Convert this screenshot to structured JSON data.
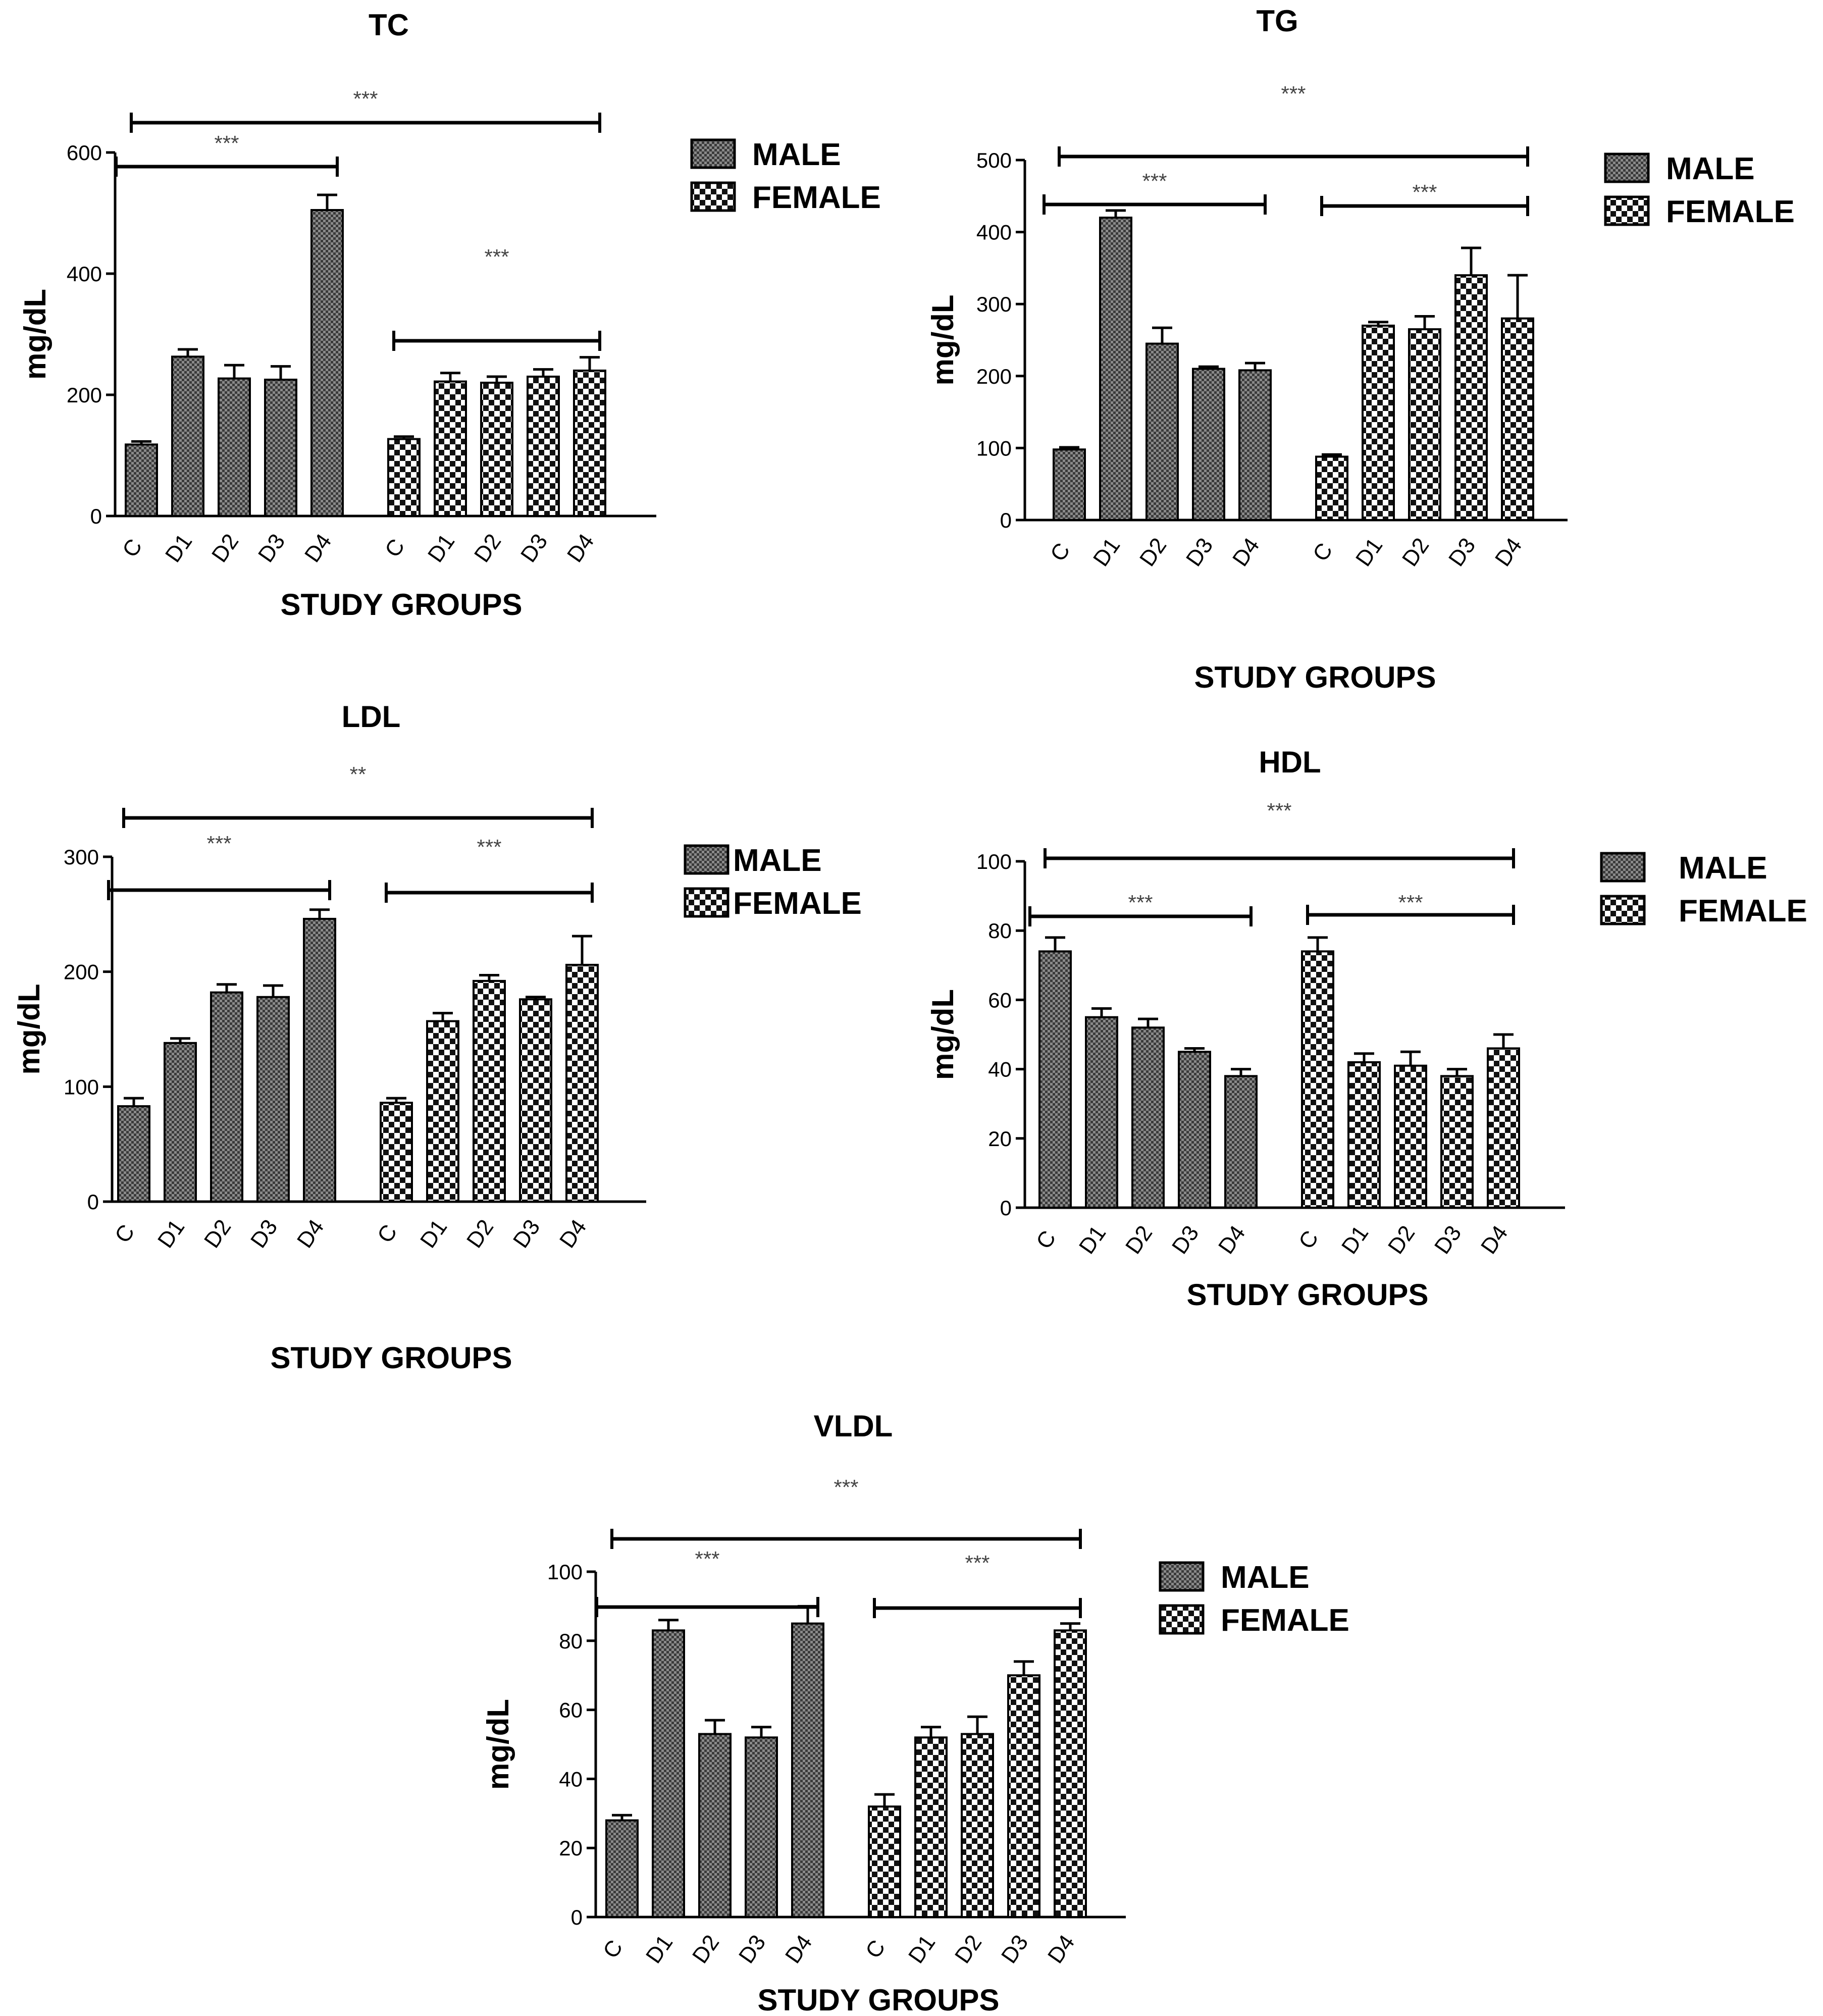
{
  "figure": {
    "description_none": null
  },
  "chart_data": [
    {
      "id": "TC",
      "type": "bar",
      "title": "TC",
      "ylabel": "mg/dL",
      "xlabel": "STUDY GROUPS",
      "ylim": [
        0,
        600
      ],
      "yticks": [
        "0",
        "200",
        "400",
        "600"
      ],
      "categories": [
        "C",
        "D1",
        "D2",
        "D3",
        "D4"
      ],
      "series": [
        {
          "name": "MALE",
          "values": [
            118,
            263,
            227,
            225,
            505
          ],
          "errors": [
            5,
            12,
            22,
            22,
            25
          ]
        },
        {
          "name": "FEMALE",
          "values": [
            127,
            222,
            220,
            230,
            240
          ],
          "errors": [
            4,
            14,
            10,
            12,
            22
          ]
        }
      ],
      "legend": [
        "MALE",
        "FEMALE"
      ],
      "brackets": [
        {
          "label": "***",
          "span": "all"
        },
        {
          "label": "***",
          "span": "MALE"
        },
        {
          "label": "***",
          "span": "FEMALE"
        }
      ]
    },
    {
      "id": "TG",
      "type": "bar",
      "title": "TG",
      "ylabel": "mg/dL",
      "xlabel": "STUDY GROUPS",
      "ylim": [
        0,
        500
      ],
      "yticks": [
        "0",
        "100",
        "200",
        "300",
        "400",
        "500"
      ],
      "categories": [
        "C",
        "D1",
        "D2",
        "D3",
        "D4"
      ],
      "series": [
        {
          "name": "MALE",
          "values": [
            98,
            420,
            245,
            210,
            208
          ],
          "errors": [
            3,
            10,
            22,
            3,
            10
          ]
        },
        {
          "name": "FEMALE",
          "values": [
            88,
            270,
            265,
            340,
            280
          ],
          "errors": [
            3,
            5,
            18,
            38,
            60
          ]
        }
      ],
      "legend": [
        "MALE",
        "FEMALE"
      ],
      "brackets": [
        {
          "label": "***",
          "span": "all"
        },
        {
          "label": "***",
          "span": "MALE"
        },
        {
          "label": "***",
          "span": "FEMALE"
        }
      ]
    },
    {
      "id": "LDL",
      "type": "bar",
      "title": "LDL",
      "ylabel": "mg/dL",
      "xlabel": "STUDY GROUPS",
      "ylim": [
        0,
        300
      ],
      "yticks": [
        "0",
        "100",
        "200",
        "300"
      ],
      "categories": [
        "C",
        "D1",
        "D2",
        "D3",
        "D4"
      ],
      "series": [
        {
          "name": "MALE",
          "values": [
            83,
            138,
            182,
            178,
            246
          ],
          "errors": [
            7,
            4,
            7,
            10,
            8
          ]
        },
        {
          "name": "FEMALE",
          "values": [
            86,
            157,
            192,
            176,
            206
          ],
          "errors": [
            4,
            7,
            5,
            2,
            25
          ]
        }
      ],
      "legend": [
        "MALE",
        "FEMALE"
      ],
      "brackets": [
        {
          "label": "**",
          "span": "all"
        },
        {
          "label": "***",
          "span": "MALE"
        },
        {
          "label": "***",
          "span": "FEMALE"
        }
      ]
    },
    {
      "id": "HDL",
      "type": "bar",
      "title": "HDL",
      "ylabel": "mg/dL",
      "xlabel": "STUDY GROUPS",
      "ylim": [
        0,
        100
      ],
      "yticks": [
        "0",
        "20",
        "40",
        "60",
        "80",
        "100"
      ],
      "categories": [
        "C",
        "D1",
        "D2",
        "D3",
        "D4"
      ],
      "series": [
        {
          "name": "MALE",
          "values": [
            74,
            55,
            52,
            45,
            38
          ],
          "errors": [
            4,
            2.5,
            2.5,
            1,
            2
          ]
        },
        {
          "name": "FEMALE",
          "values": [
            74,
            42,
            41,
            38,
            46
          ],
          "errors": [
            4,
            2.5,
            4,
            2,
            4
          ]
        }
      ],
      "legend": [
        "MALE",
        "FEMALE"
      ],
      "brackets": [
        {
          "label": "***",
          "span": "all"
        },
        {
          "label": "***",
          "span": "MALE"
        },
        {
          "label": "***",
          "span": "FEMALE"
        }
      ]
    },
    {
      "id": "VLDL",
      "type": "bar",
      "title": "VLDL",
      "ylabel": "mg/dL",
      "xlabel": "STUDY GROUPS",
      "ylim": [
        0,
        100
      ],
      "yticks": [
        "0",
        "20",
        "40",
        "60",
        "80",
        "100"
      ],
      "categories": [
        "C",
        "D1",
        "D2",
        "D3",
        "D4"
      ],
      "series": [
        {
          "name": "MALE",
          "values": [
            28,
            83,
            53,
            52,
            85
          ],
          "errors": [
            1.5,
            3,
            4,
            3,
            5
          ]
        },
        {
          "name": "FEMALE",
          "values": [
            32,
            52,
            53,
            70,
            83
          ],
          "errors": [
            3.5,
            3,
            5,
            4,
            2
          ]
        }
      ],
      "legend": [
        "MALE",
        "FEMALE"
      ],
      "brackets": [
        {
          "label": "***",
          "span": "all"
        },
        {
          "label": "***",
          "span": "MALE"
        },
        {
          "label": "***",
          "span": "FEMALE"
        }
      ]
    }
  ]
}
